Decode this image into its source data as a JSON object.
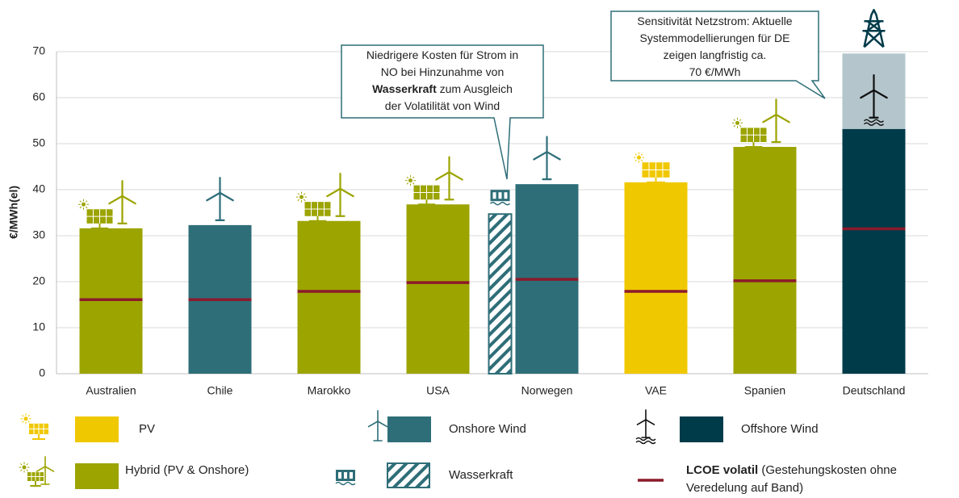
{
  "chart_data": {
    "type": "bar",
    "y_label": "€/MWh(el)",
    "categories": [
      "Australien",
      "Chile",
      "Marokko",
      "USA",
      "Norwegen",
      "VAE",
      "Spanien",
      "Deutschland"
    ],
    "values": [
      31.6,
      32.3,
      33.2,
      36.8,
      41.2,
      41.6,
      49.3,
      53.2
    ],
    "colors": [
      "#9ca400",
      "#2e6e78",
      "#9ca400",
      "#9ca400",
      "#2e6e78",
      "#f0c800",
      "#9ca400",
      "#003b4a"
    ],
    "hydro": {
      "values": [
        null,
        null,
        null,
        null,
        34.7,
        null,
        null,
        null
      ],
      "color": "#2e6e78",
      "hatch": true
    },
    "sensitivity": {
      "values": [
        null,
        null,
        null,
        null,
        null,
        null,
        null,
        16.4
      ],
      "color": "#b4c6cc"
    },
    "lcoe": {
      "values": [
        16.1,
        16.1,
        17.9,
        19.8,
        20.5,
        17.9,
        20.2,
        31.5
      ],
      "color": "#8b1a2b"
    },
    "ylim": [
      0,
      70
    ],
    "yticks": [
      0,
      10,
      20,
      30,
      40,
      50,
      60,
      70
    ],
    "grid": true,
    "annotations": [
      {
        "lines": [
          {
            "text": "Niedrigere Kosten für Strom in"
          },
          {
            "text": "NO bei Hinzunahme von"
          },
          {
            "bold": "Wasserkraft",
            "text": " zum Ausgleich"
          },
          {
            "text": "der Volatilität von Wind"
          }
        ]
      },
      {
        "lines": [
          {
            "text": "Sensitivität Netzstrom: Aktuelle"
          },
          {
            "text": "Systemmodellierungen für DE"
          },
          {
            "text": "zeigen langfristig ca."
          },
          {
            "text": "70 €/MWh"
          }
        ]
      }
    ],
    "legend": [
      {
        "label": "PV",
        "color": "#f0c800"
      },
      {
        "label": "Onshore Wind",
        "color": "#2e6e78"
      },
      {
        "label": "Offshore Wind",
        "color": "#003b4a"
      },
      {
        "label": "Hybrid (PV & Onshore)",
        "color": "#9ca400"
      },
      {
        "label": "Wasserkraft",
        "color": "#2e6e78"
      },
      {
        "bold": "LCOE volatil",
        "label": " (Gestehungskosten ohne",
        "label2": "Veredelung auf Band)",
        "color": "#8b1a2b"
      }
    ]
  }
}
